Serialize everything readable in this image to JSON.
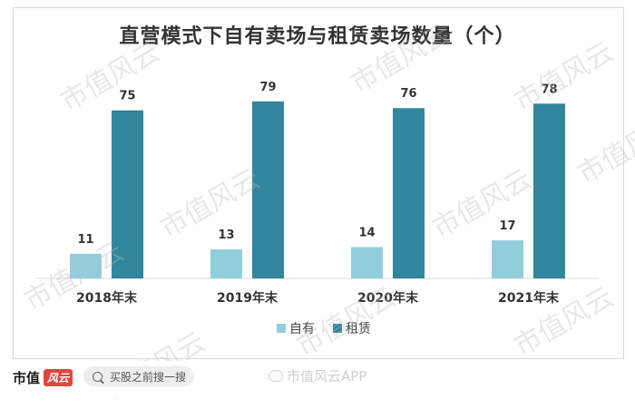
{
  "chart_data": {
    "type": "bar",
    "title": "直营模式下自有卖场与租赁卖场数量（个）",
    "categories": [
      "2018年末",
      "2019年末",
      "2020年末",
      "2021年末"
    ],
    "series": [
      {
        "name": "自有",
        "values": [
          11,
          13,
          14,
          17
        ],
        "color": "#92cddc"
      },
      {
        "name": "租赁",
        "values": [
          75,
          79,
          76,
          78
        ],
        "color": "#31859c"
      }
    ],
    "ylim": [
      0,
      85
    ],
    "grid": false,
    "legend": "bottom-center",
    "xlabel": "",
    "ylabel": ""
  },
  "watermark": {
    "text": "市值风云"
  },
  "footer": {
    "brand_name": "市值",
    "brand_logo_text": "风云",
    "search_text": "买股之前搜一搜",
    "weibo_text": "市值风云APP"
  }
}
